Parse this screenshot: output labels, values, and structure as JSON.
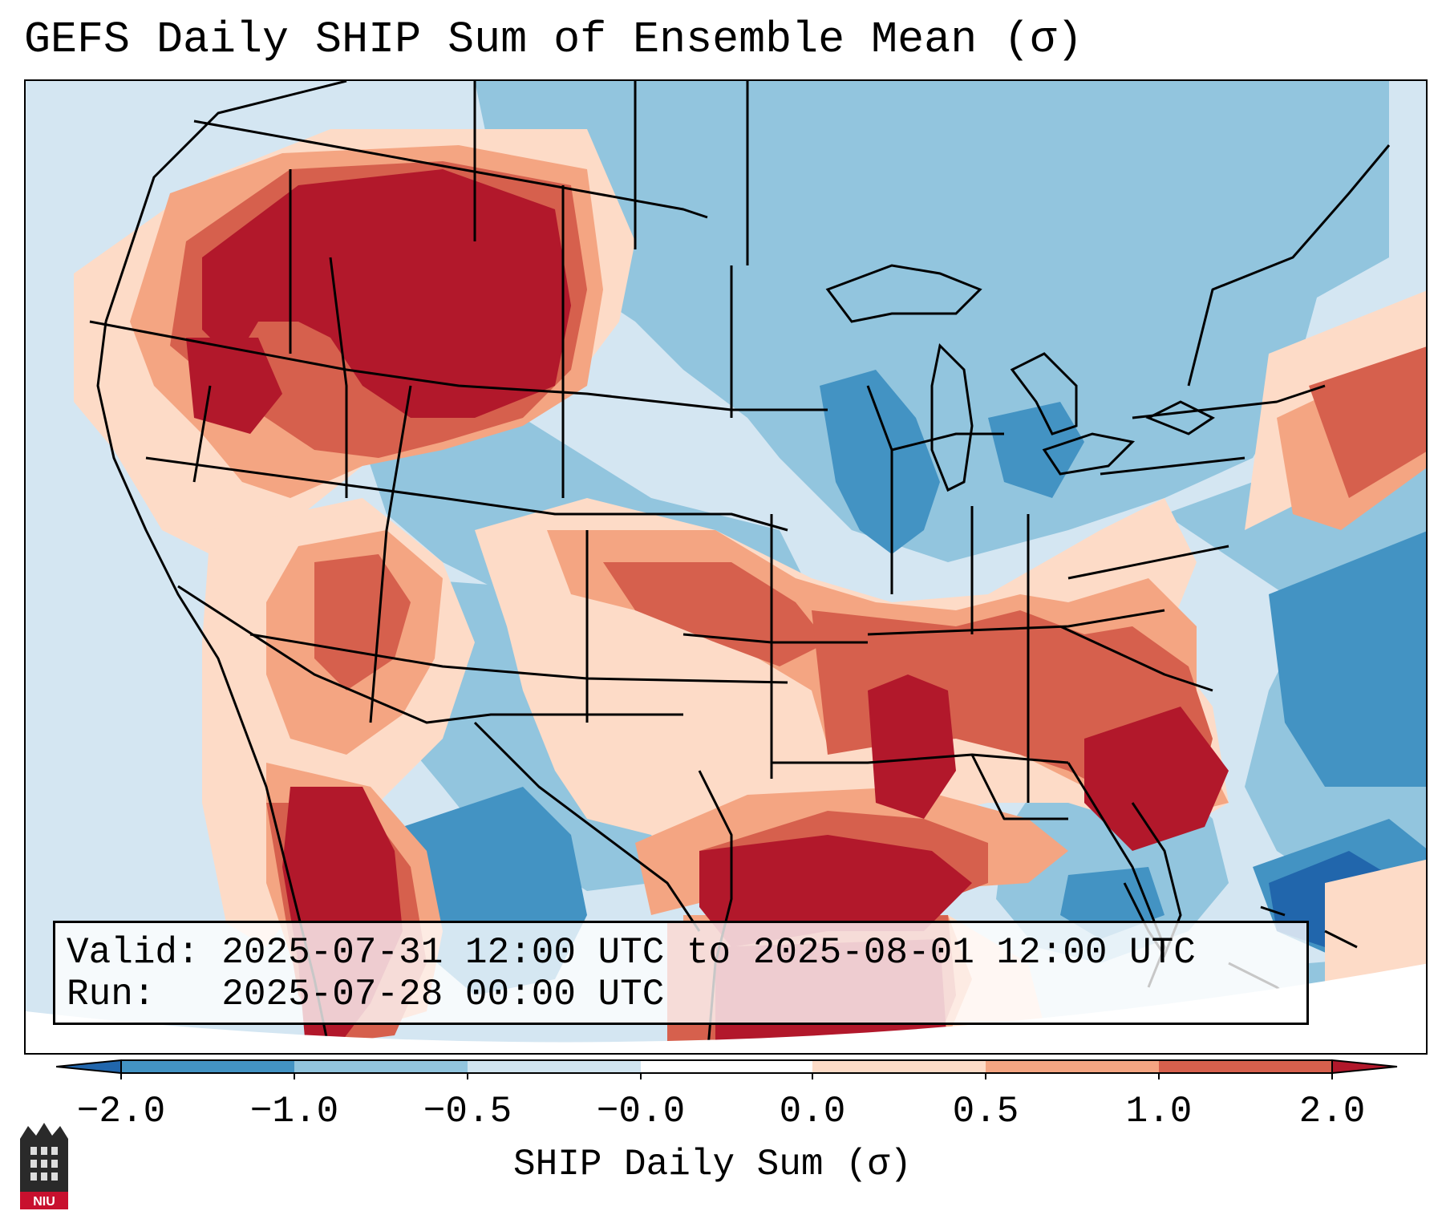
{
  "title": "GEFS Daily SHIP Sum of Ensemble Mean (σ)",
  "info": {
    "valid_label": "Valid:",
    "valid_value": "2025-07-31 12:00 UTC to 2025-08-01 12:00 UTC",
    "run_label": "Run:  ",
    "run_value": "2025-07-28 00:00 UTC"
  },
  "colorbar": {
    "label": "SHIP Daily Sum (σ)",
    "ticks": [
      "−2.0",
      "−1.0",
      "−0.5",
      "−0.0",
      "0.0",
      "0.5",
      "1.0",
      "2.0"
    ],
    "colors": [
      "#2166ac",
      "#4393c3",
      "#92c5de",
      "#d1e5f0",
      "#ffffff",
      "#fddbc7",
      "#f4a582",
      "#d6604d",
      "#b2182b"
    ],
    "extend": "both"
  },
  "map": {
    "region": "Contiguous United States",
    "background_color": "#d4e6f2",
    "anomaly_scale_colors": {
      "strong_negative": "#2166ac",
      "negative": "#4393c3",
      "weak_negative": "#92c5de",
      "near_zero_negative": "#d1e5f0",
      "near_zero_positive": "#fddbc7",
      "weak_positive": "#f4a582",
      "positive": "#d6604d",
      "strong_positive": "#b2182b"
    }
  },
  "logo": {
    "text": "NIU"
  }
}
